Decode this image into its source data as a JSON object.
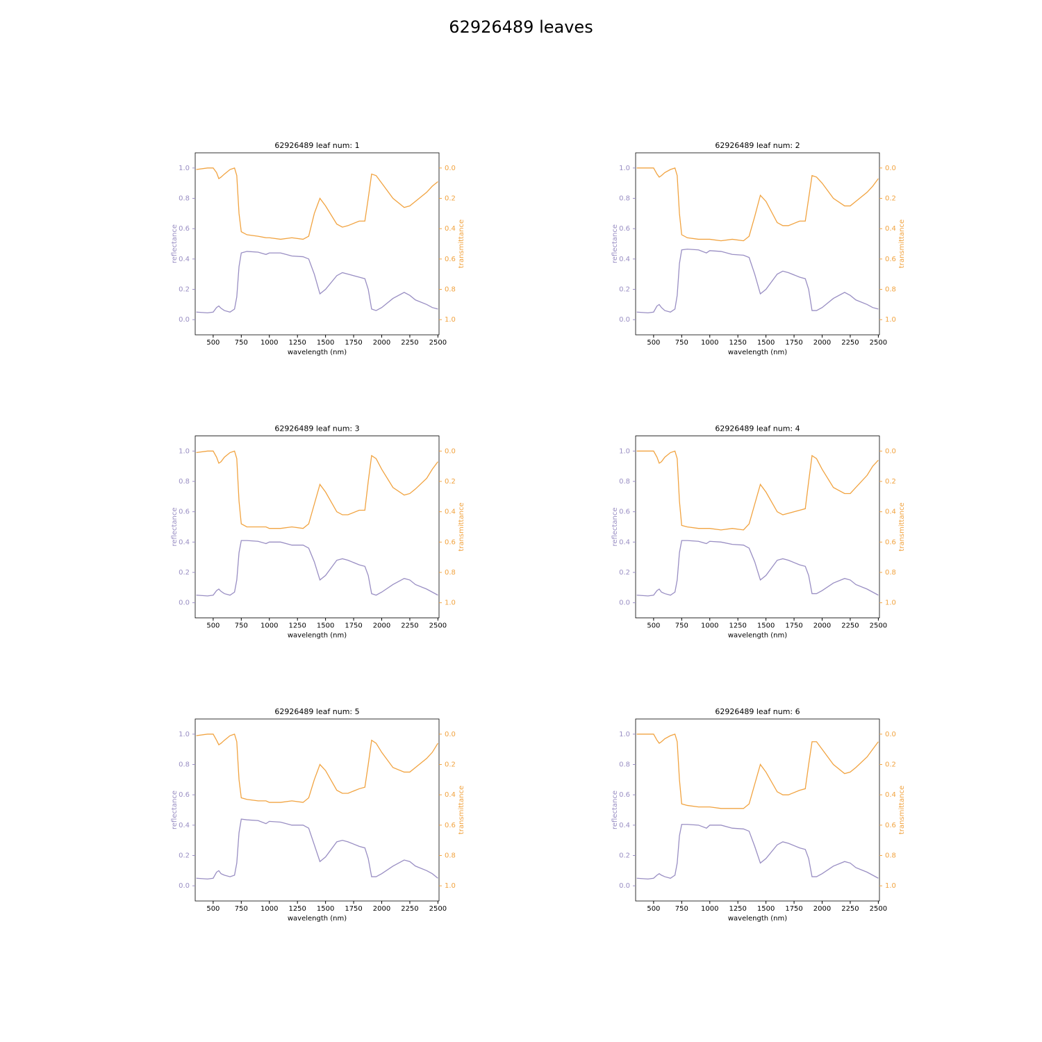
{
  "title": "62926489 leaves",
  "chart_data": [
    {
      "type": "line",
      "title": "62926489 leaf num: 1",
      "x_label": "wavelength (nm)",
      "y_label": "reflectance",
      "y2_label": "transmittance",
      "x": [
        350,
        450,
        500,
        530,
        550,
        570,
        600,
        650,
        690,
        710,
        730,
        750,
        800,
        900,
        970,
        1000,
        1100,
        1200,
        1300,
        1350,
        1400,
        1450,
        1500,
        1600,
        1650,
        1700,
        1800,
        1850,
        1880,
        1910,
        1950,
        2000,
        2100,
        2200,
        2250,
        2300,
        2400,
        2450,
        2500
      ],
      "series": [
        {
          "color": "#998ec3",
          "values": [
            0.05,
            0.045,
            0.05,
            0.08,
            0.09,
            0.075,
            0.06,
            0.05,
            0.07,
            0.15,
            0.35,
            0.44,
            0.45,
            0.445,
            0.43,
            0.44,
            0.44,
            0.42,
            0.415,
            0.4,
            0.3,
            0.17,
            0.2,
            0.29,
            0.31,
            0.3,
            0.28,
            0.27,
            0.2,
            0.07,
            0.06,
            0.08,
            0.14,
            0.18,
            0.16,
            0.13,
            0.1,
            0.08,
            0.07
          ]
        },
        {
          "color": "#f1a340",
          "axis": "y2",
          "values": [
            0.01,
            0,
            0,
            0.03,
            0.07,
            0.06,
            0.04,
            0.01,
            0,
            0.05,
            0.3,
            0.42,
            0.44,
            0.45,
            0.46,
            0.46,
            0.47,
            0.46,
            0.47,
            0.45,
            0.3,
            0.2,
            0.25,
            0.37,
            0.39,
            0.38,
            0.35,
            0.35,
            0.2,
            0.04,
            0.05,
            0.1,
            0.2,
            0.26,
            0.25,
            0.22,
            0.16,
            0.12,
            0.09
          ]
        }
      ],
      "xlim": [
        340,
        2510
      ],
      "xticks": [
        500,
        750,
        1000,
        1250,
        1500,
        1750,
        2000,
        2250,
        2500
      ],
      "ylim": [
        -0.1,
        1.1
      ],
      "yticks": [
        {
          "value": 0,
          "label": "0.0"
        },
        0.2,
        0.4,
        0.6,
        0.8,
        {
          "value": 1,
          "label": "1.0"
        }
      ],
      "y2lim": [
        1.1,
        -0.1
      ],
      "y2ticks": [
        {
          "value": 0,
          "label": "0.0"
        },
        0.2,
        0.4,
        0.6,
        0.8,
        {
          "value": 1,
          "label": "1.0"
        }
      ]
    },
    {
      "type": "line",
      "title": "62926489 leaf num: 2",
      "x_label": "wavelength (nm)",
      "y_label": "reflectance",
      "y2_label": "transmittance",
      "x": [
        350,
        450,
        500,
        530,
        550,
        570,
        600,
        650,
        690,
        710,
        730,
        750,
        800,
        900,
        970,
        1000,
        1100,
        1200,
        1300,
        1350,
        1400,
        1450,
        1500,
        1600,
        1650,
        1700,
        1800,
        1850,
        1880,
        1910,
        1950,
        2000,
        2100,
        2200,
        2250,
        2300,
        2400,
        2450,
        2500
      ],
      "series": [
        {
          "color": "#998ec3",
          "values": [
            0.05,
            0.045,
            0.05,
            0.09,
            0.1,
            0.08,
            0.06,
            0.05,
            0.07,
            0.16,
            0.37,
            0.46,
            0.465,
            0.46,
            0.44,
            0.455,
            0.45,
            0.43,
            0.425,
            0.41,
            0.3,
            0.17,
            0.2,
            0.3,
            0.32,
            0.31,
            0.28,
            0.27,
            0.2,
            0.06,
            0.06,
            0.08,
            0.14,
            0.18,
            0.16,
            0.13,
            0.1,
            0.08,
            0.07
          ]
        },
        {
          "color": "#f1a340",
          "axis": "y2",
          "values": [
            0,
            0,
            0,
            0.04,
            0.06,
            0.05,
            0.03,
            0.01,
            0,
            0.05,
            0.3,
            0.44,
            0.46,
            0.47,
            0.47,
            0.47,
            0.48,
            0.47,
            0.48,
            0.45,
            0.32,
            0.18,
            0.22,
            0.36,
            0.38,
            0.38,
            0.35,
            0.35,
            0.2,
            0.05,
            0.06,
            0.1,
            0.2,
            0.25,
            0.25,
            0.22,
            0.16,
            0.12,
            0.07
          ]
        }
      ],
      "xlim": [
        340,
        2510
      ],
      "xticks": [
        500,
        750,
        1000,
        1250,
        1500,
        1750,
        2000,
        2250,
        2500
      ],
      "ylim": [
        -0.1,
        1.1
      ],
      "yticks": [
        {
          "value": 0,
          "label": "0.0"
        },
        0.2,
        0.4,
        0.6,
        0.8,
        {
          "value": 1,
          "label": "1.0"
        }
      ],
      "y2lim": [
        1.1,
        -0.1
      ],
      "y2ticks": [
        {
          "value": 0,
          "label": "0.0"
        },
        0.2,
        0.4,
        0.6,
        0.8,
        {
          "value": 1,
          "label": "1.0"
        }
      ]
    },
    {
      "type": "line",
      "title": "62926489 leaf num: 3",
      "x_label": "wavelength (nm)",
      "y_label": "reflectance",
      "y2_label": "transmittance",
      "x": [
        350,
        450,
        500,
        530,
        550,
        570,
        600,
        650,
        690,
        710,
        730,
        750,
        800,
        900,
        970,
        1000,
        1100,
        1200,
        1300,
        1350,
        1400,
        1450,
        1500,
        1600,
        1650,
        1700,
        1800,
        1850,
        1880,
        1910,
        1950,
        2000,
        2100,
        2200,
        2250,
        2300,
        2400,
        2450,
        2500
      ],
      "series": [
        {
          "color": "#998ec3",
          "values": [
            0.05,
            0.045,
            0.05,
            0.08,
            0.09,
            0.075,
            0.06,
            0.05,
            0.07,
            0.15,
            0.33,
            0.41,
            0.41,
            0.405,
            0.39,
            0.4,
            0.4,
            0.38,
            0.38,
            0.36,
            0.27,
            0.15,
            0.18,
            0.28,
            0.29,
            0.28,
            0.25,
            0.24,
            0.18,
            0.06,
            0.05,
            0.07,
            0.12,
            0.16,
            0.15,
            0.12,
            0.09,
            0.07,
            0.05
          ]
        },
        {
          "color": "#f1a340",
          "axis": "y2",
          "values": [
            0.01,
            0,
            0,
            0.04,
            0.08,
            0.07,
            0.04,
            0.01,
            0,
            0.05,
            0.33,
            0.48,
            0.5,
            0.5,
            0.5,
            0.51,
            0.51,
            0.5,
            0.51,
            0.48,
            0.35,
            0.22,
            0.27,
            0.4,
            0.42,
            0.42,
            0.39,
            0.39,
            0.2,
            0.03,
            0.05,
            0.12,
            0.24,
            0.29,
            0.28,
            0.25,
            0.18,
            0.12,
            0.07
          ]
        }
      ],
      "xlim": [
        340,
        2510
      ],
      "xticks": [
        500,
        750,
        1000,
        1250,
        1500,
        1750,
        2000,
        2250,
        2500
      ],
      "ylim": [
        -0.1,
        1.1
      ],
      "yticks": [
        {
          "value": 0,
          "label": "0.0"
        },
        0.2,
        0.4,
        0.6,
        0.8,
        {
          "value": 1,
          "label": "1.0"
        }
      ],
      "y2lim": [
        1.1,
        -0.1
      ],
      "y2ticks": [
        {
          "value": 0,
          "label": "0.0"
        },
        0.2,
        0.4,
        0.6,
        0.8,
        {
          "value": 1,
          "label": "1.0"
        }
      ]
    },
    {
      "type": "line",
      "title": "62926489 leaf num: 4",
      "x_label": "wavelength (nm)",
      "y_label": "reflectance",
      "y2_label": "transmittance",
      "x": [
        350,
        450,
        500,
        530,
        550,
        570,
        600,
        650,
        690,
        710,
        730,
        750,
        800,
        900,
        970,
        1000,
        1100,
        1200,
        1300,
        1350,
        1400,
        1450,
        1500,
        1600,
        1650,
        1700,
        1800,
        1850,
        1880,
        1910,
        1950,
        2000,
        2100,
        2200,
        2250,
        2300,
        2400,
        2450,
        2500
      ],
      "series": [
        {
          "color": "#998ec3",
          "values": [
            0.05,
            0.045,
            0.05,
            0.08,
            0.09,
            0.07,
            0.06,
            0.05,
            0.07,
            0.15,
            0.33,
            0.41,
            0.41,
            0.405,
            0.39,
            0.405,
            0.4,
            0.385,
            0.38,
            0.36,
            0.27,
            0.15,
            0.18,
            0.28,
            0.29,
            0.28,
            0.25,
            0.24,
            0.18,
            0.06,
            0.06,
            0.08,
            0.13,
            0.16,
            0.15,
            0.12,
            0.09,
            0.07,
            0.05
          ]
        },
        {
          "color": "#f1a340",
          "axis": "y2",
          "values": [
            0,
            0,
            0,
            0.04,
            0.08,
            0.07,
            0.04,
            0.01,
            0,
            0.05,
            0.33,
            0.49,
            0.5,
            0.51,
            0.51,
            0.51,
            0.52,
            0.51,
            0.52,
            0.48,
            0.35,
            0.22,
            0.27,
            0.4,
            0.42,
            0.41,
            0.39,
            0.38,
            0.2,
            0.03,
            0.05,
            0.12,
            0.24,
            0.28,
            0.28,
            0.24,
            0.16,
            0.1,
            0.06
          ]
        }
      ],
      "xlim": [
        340,
        2510
      ],
      "xticks": [
        500,
        750,
        1000,
        1250,
        1500,
        1750,
        2000,
        2250,
        2500
      ],
      "ylim": [
        -0.1,
        1.1
      ],
      "yticks": [
        {
          "value": 0,
          "label": "0.0"
        },
        0.2,
        0.4,
        0.6,
        0.8,
        {
          "value": 1,
          "label": "1.0"
        }
      ],
      "y2lim": [
        1.1,
        -0.1
      ],
      "y2ticks": [
        {
          "value": 0,
          "label": "0.0"
        },
        0.2,
        0.4,
        0.6,
        0.8,
        {
          "value": 1,
          "label": "1.0"
        }
      ]
    },
    {
      "type": "line",
      "title": "62926489 leaf num: 5",
      "x_label": "wavelength (nm)",
      "y_label": "reflectance",
      "y2_label": "transmittance",
      "x": [
        350,
        450,
        500,
        530,
        550,
        570,
        600,
        650,
        690,
        710,
        730,
        750,
        800,
        900,
        970,
        1000,
        1100,
        1200,
        1300,
        1350,
        1400,
        1450,
        1500,
        1600,
        1650,
        1700,
        1800,
        1850,
        1880,
        1910,
        1950,
        2000,
        2100,
        2200,
        2250,
        2300,
        2400,
        2450,
        2500
      ],
      "series": [
        {
          "color": "#998ec3",
          "values": [
            0.05,
            0.045,
            0.05,
            0.09,
            0.1,
            0.08,
            0.07,
            0.06,
            0.07,
            0.15,
            0.35,
            0.44,
            0.435,
            0.43,
            0.41,
            0.425,
            0.42,
            0.4,
            0.4,
            0.38,
            0.27,
            0.16,
            0.19,
            0.29,
            0.3,
            0.29,
            0.26,
            0.25,
            0.18,
            0.06,
            0.06,
            0.08,
            0.13,
            0.17,
            0.16,
            0.13,
            0.1,
            0.08,
            0.05
          ]
        },
        {
          "color": "#f1a340",
          "axis": "y2",
          "values": [
            0.01,
            0,
            0,
            0.04,
            0.07,
            0.06,
            0.04,
            0.01,
            0,
            0.05,
            0.3,
            0.42,
            0.43,
            0.44,
            0.44,
            0.45,
            0.45,
            0.44,
            0.45,
            0.42,
            0.3,
            0.2,
            0.24,
            0.37,
            0.39,
            0.39,
            0.36,
            0.35,
            0.2,
            0.04,
            0.06,
            0.12,
            0.22,
            0.25,
            0.25,
            0.22,
            0.16,
            0.12,
            0.06
          ]
        }
      ],
      "xlim": [
        340,
        2510
      ],
      "xticks": [
        500,
        750,
        1000,
        1250,
        1500,
        1750,
        2000,
        2250,
        2500
      ],
      "ylim": [
        -0.1,
        1.1
      ],
      "yticks": [
        {
          "value": 0,
          "label": "0.0"
        },
        0.2,
        0.4,
        0.6,
        0.8,
        {
          "value": 1,
          "label": "1.0"
        }
      ],
      "y2lim": [
        1.1,
        -0.1
      ],
      "y2ticks": [
        {
          "value": 0,
          "label": "0.0"
        },
        0.2,
        0.4,
        0.6,
        0.8,
        {
          "value": 1,
          "label": "1.0"
        }
      ]
    },
    {
      "type": "line",
      "title": "62926489 leaf num: 6",
      "x_label": "wavelength (nm)",
      "y_label": "reflectance",
      "y2_label": "transmittance",
      "x": [
        350,
        450,
        500,
        530,
        550,
        570,
        600,
        650,
        690,
        710,
        730,
        750,
        800,
        900,
        970,
        1000,
        1100,
        1200,
        1300,
        1350,
        1400,
        1450,
        1500,
        1600,
        1650,
        1700,
        1800,
        1850,
        1880,
        1910,
        1950,
        2000,
        2100,
        2200,
        2250,
        2300,
        2400,
        2450,
        2500
      ],
      "series": [
        {
          "color": "#998ec3",
          "values": [
            0.05,
            0.045,
            0.05,
            0.07,
            0.08,
            0.07,
            0.06,
            0.05,
            0.07,
            0.15,
            0.33,
            0.405,
            0.405,
            0.4,
            0.38,
            0.4,
            0.4,
            0.38,
            0.375,
            0.36,
            0.26,
            0.15,
            0.18,
            0.27,
            0.29,
            0.28,
            0.25,
            0.24,
            0.18,
            0.06,
            0.06,
            0.08,
            0.13,
            0.16,
            0.15,
            0.12,
            0.09,
            0.07,
            0.05
          ]
        },
        {
          "color": "#f1a340",
          "axis": "y2",
          "values": [
            0,
            0,
            0,
            0.04,
            0.06,
            0.05,
            0.03,
            0.01,
            0,
            0.05,
            0.3,
            0.46,
            0.47,
            0.48,
            0.48,
            0.48,
            0.49,
            0.49,
            0.49,
            0.46,
            0.33,
            0.2,
            0.25,
            0.38,
            0.4,
            0.4,
            0.37,
            0.36,
            0.2,
            0.05,
            0.05,
            0.1,
            0.2,
            0.26,
            0.25,
            0.22,
            0.15,
            0.1,
            0.05
          ]
        }
      ],
      "xlim": [
        340,
        2510
      ],
      "xticks": [
        500,
        750,
        1000,
        1250,
        1500,
        1750,
        2000,
        2250,
        2500
      ],
      "ylim": [
        -0.1,
        1.1
      ],
      "yticks": [
        {
          "value": 0,
          "label": "0.0"
        },
        0.2,
        0.4,
        0.6,
        0.8,
        {
          "value": 1,
          "label": "1.0"
        }
      ],
      "y2lim": [
        1.1,
        -0.1
      ],
      "y2ticks": [
        {
          "value": 0,
          "label": "0.0"
        },
        0.2,
        0.4,
        0.6,
        0.8,
        {
          "value": 1,
          "label": "1.0"
        }
      ]
    }
  ]
}
